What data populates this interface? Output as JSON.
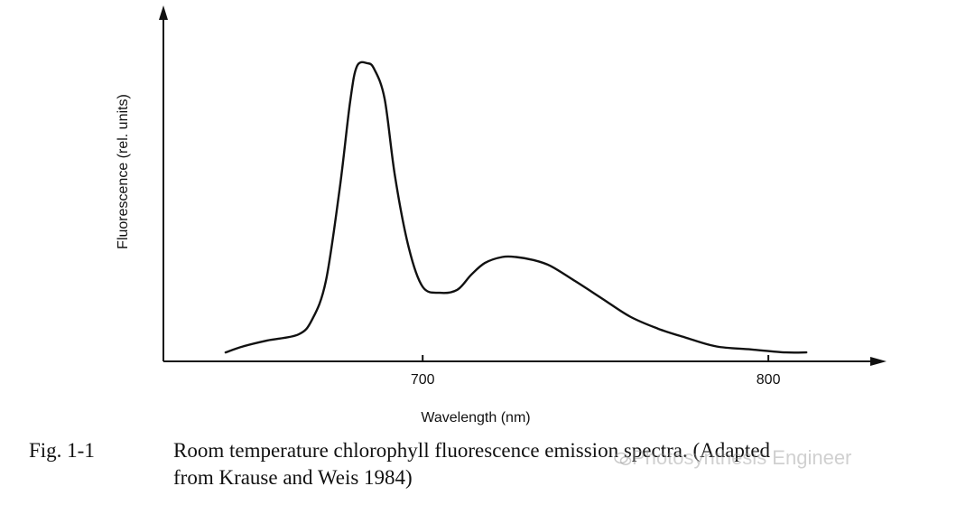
{
  "chart_data": {
    "type": "line",
    "title": "",
    "xlabel": "Wavelength (nm)",
    "ylabel": "Fluorescence (rel. units)",
    "xlim": [
      625,
      830
    ],
    "ylim": [
      0,
      100
    ],
    "x_ticks": [
      "700",
      "800"
    ],
    "x_tick_values": [
      700,
      800
    ],
    "y_ticks": [],
    "grid": false,
    "legend": "none",
    "series": [
      {
        "x": [
          643,
          648,
          655,
          664,
          668,
          672,
          676,
          679,
          681,
          684,
          686,
          689,
          692,
          696,
          700,
          705,
          710,
          714,
          718,
          723,
          727,
          732,
          737,
          744,
          752,
          760,
          768,
          776,
          785,
          795,
          805,
          811
        ],
        "values": [
          3,
          5,
          7,
          9,
          14,
          27,
          58,
          87,
          99,
          100,
          98,
          88,
          62,
          38,
          25,
          23,
          24,
          29,
          33,
          35,
          35,
          34,
          32,
          27,
          21,
          15,
          11,
          8,
          5,
          4,
          3,
          3
        ]
      }
    ]
  },
  "caption": {
    "figure_number": "Fig. 1-1",
    "text_line1": "Room temperature chlorophyll fluorescence emission spectra. (Adapted",
    "text_line2": "from Krause and Weis 1984)"
  },
  "watermark": "Photosynthesis Engineer",
  "colors": {
    "line": "#111111",
    "axis": "#111111",
    "watermark": "#969696"
  }
}
